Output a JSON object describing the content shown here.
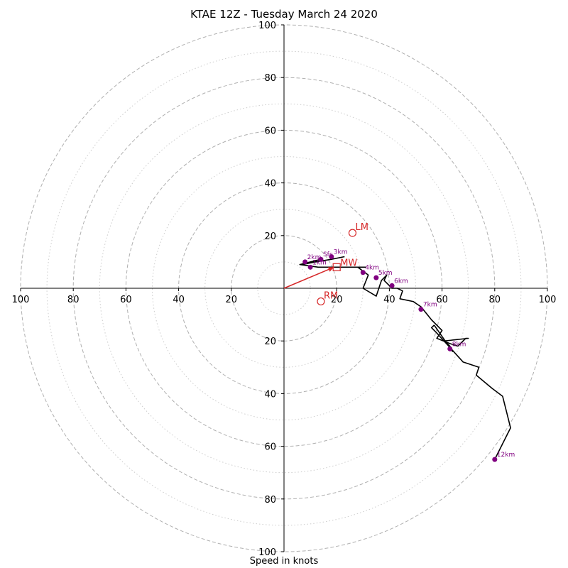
{
  "chart_data": {
    "type": "line",
    "title": "KTAE 12Z - Tuesday March 24 2020",
    "xlabel": "Speed in knots",
    "units": "knots",
    "max_speed": 100,
    "ring_major_labels": [
      "20",
      "40",
      "60",
      "80",
      "100"
    ],
    "ring_major_values": [
      20,
      40,
      60,
      80,
      100
    ],
    "ring_minor_values": [
      10,
      30,
      50,
      70,
      90
    ],
    "grid": true,
    "colors": {
      "trace": "#000000",
      "height_marker": "#800080",
      "storm_motion": "#d62728",
      "major_ring": "#b0b0b0",
      "minor_ring": "#cccccc"
    },
    "hodograph": {
      "u": [
        23,
        18,
        12,
        7,
        14,
        10,
        6,
        13,
        19,
        26,
        31,
        28,
        32,
        30,
        35,
        37,
        39,
        38,
        40,
        41,
        43,
        45,
        44,
        49,
        52,
        56,
        60,
        58,
        63,
        66,
        69,
        70,
        61,
        62,
        63,
        64,
        57,
        56,
        58,
        68,
        74,
        73,
        79,
        83,
        86,
        80
      ],
      "v": [
        12,
        11,
        10,
        9,
        11,
        10,
        9,
        8,
        8,
        8,
        8,
        8,
        5,
        0,
        -3,
        3,
        5,
        3,
        1,
        0,
        0,
        -1,
        -4,
        -5,
        -7,
        -12,
        -16,
        -19,
        -21,
        -22,
        -19,
        -19,
        -20,
        -21,
        -22,
        -24,
        -14,
        -15,
        -17,
        -28,
        -30,
        -33,
        -38,
        -41,
        -53,
        -65
      ],
      "segments": [
        [
          0,
          11
        ],
        [
          11,
          29
        ],
        [
          29,
          33
        ],
        [
          33,
          36
        ],
        [
          36,
          45
        ]
      ]
    },
    "height_markers": [
      {
        "label": "Sfc",
        "u": 14,
        "v": 11
      },
      {
        "label": "1km",
        "u": 10,
        "v": 8
      },
      {
        "label": "2km",
        "u": 8,
        "v": 10
      },
      {
        "label": "3km",
        "u": 18,
        "v": 12
      },
      {
        "label": "4km",
        "u": 30,
        "v": 6
      },
      {
        "label": "5km",
        "u": 35,
        "v": 4
      },
      {
        "label": "6km",
        "u": 41,
        "v": 1
      },
      {
        "label": "7km",
        "u": 52,
        "v": -8
      },
      {
        "label": "8km",
        "u": 63,
        "v": -23
      },
      {
        "label": "12km",
        "u": 80,
        "v": -65
      }
    ],
    "storm_motion": {
      "mean_wind": {
        "label": "MW",
        "u": 20,
        "v": 8
      },
      "left_mover": {
        "label": "LM",
        "u": 26,
        "v": 21
      },
      "right_mover": {
        "label": "RM",
        "u": 14,
        "v": -5
      },
      "arrow": {
        "u": 19,
        "v": 8
      }
    }
  }
}
